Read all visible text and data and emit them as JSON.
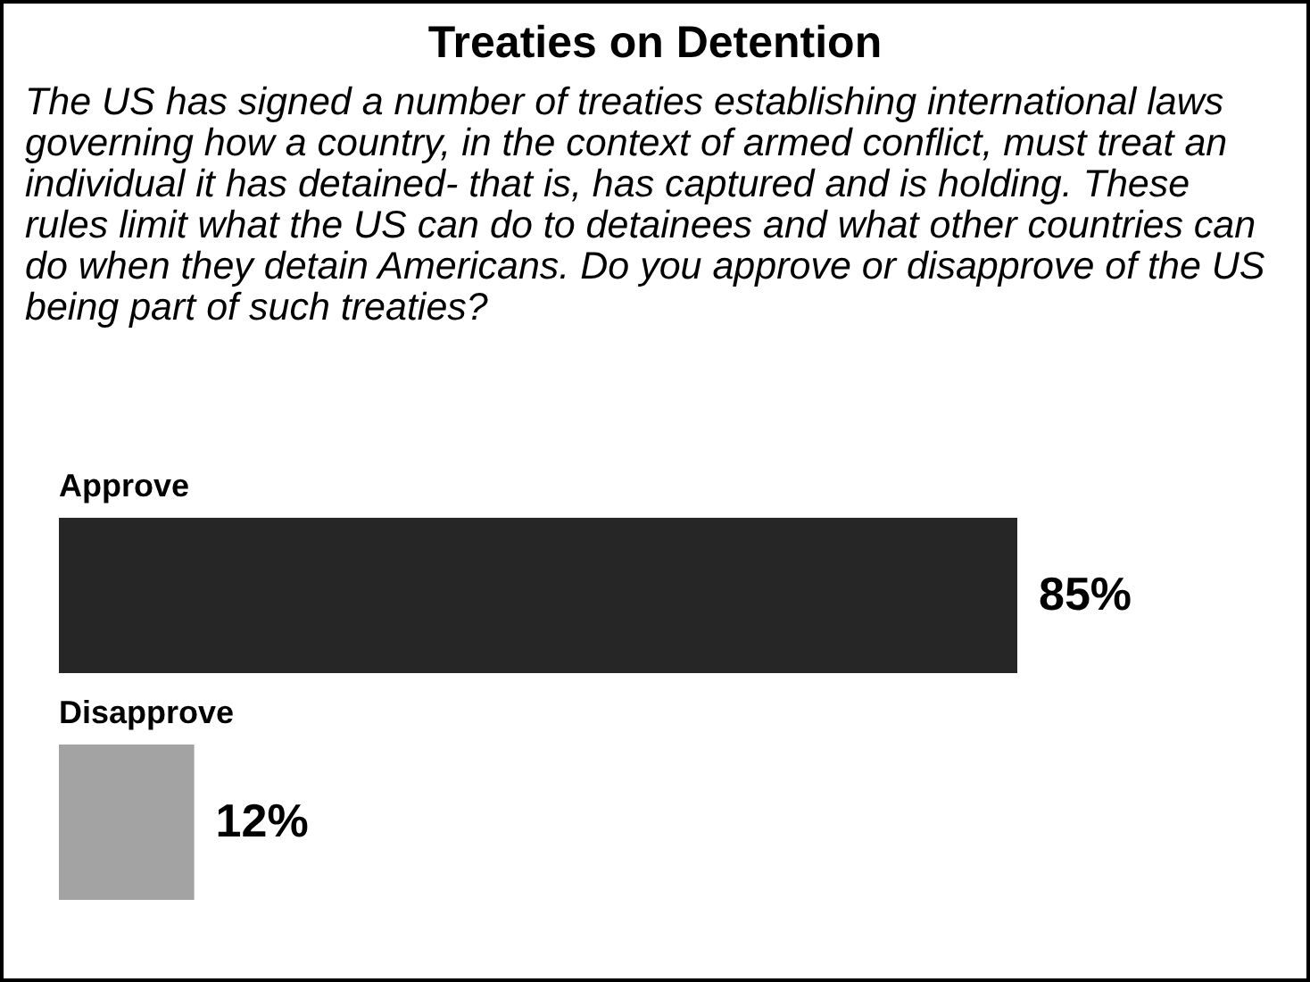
{
  "chart_data": {
    "type": "bar",
    "orientation": "horizontal",
    "title": "Treaties on Detention",
    "subtitle": "The US has signed a number of treaties establishing international laws governing how a country, in the context of armed conflict, must treat an individual it has detained- that is, has captured and is holding.  These rules limit what the US can do to detainees and what other countries can do when they detain Americans. Do you approve or disapprove of the US being part of such treaties?",
    "categories": [
      "Approve",
      "Disapprove"
    ],
    "values": [
      85,
      12
    ],
    "colors": [
      "#262626",
      "#a3a3a3"
    ],
    "value_labels": [
      "85%",
      "12%"
    ]
  }
}
